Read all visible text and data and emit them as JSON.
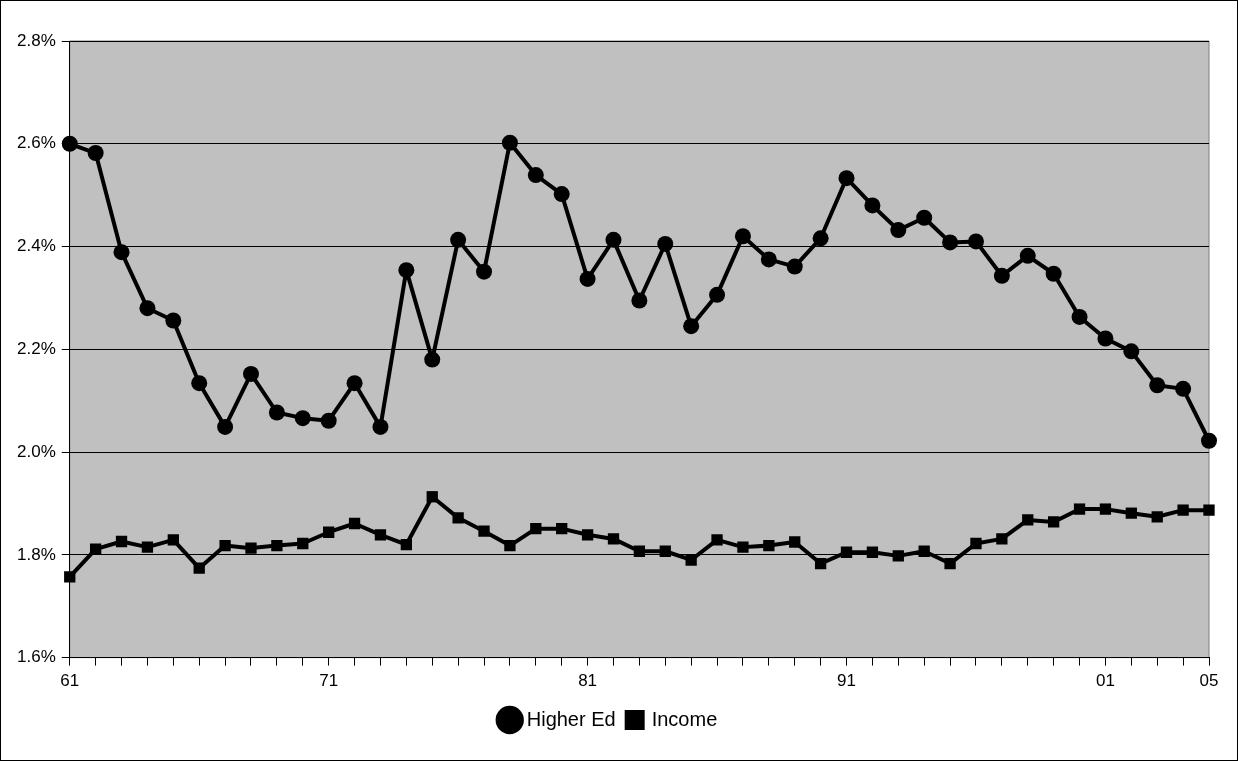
{
  "chart_data": {
    "type": "line",
    "categories": [
      "61",
      null,
      null,
      null,
      null,
      null,
      null,
      null,
      null,
      null,
      "71",
      null,
      null,
      null,
      null,
      null,
      null,
      null,
      null,
      null,
      "81",
      null,
      null,
      null,
      null,
      null,
      null,
      null,
      null,
      null,
      "91",
      null,
      null,
      null,
      null,
      null,
      null,
      null,
      null,
      null,
      "01",
      null,
      null,
      null,
      "05"
    ],
    "series": [
      {
        "name": "Higher Ed",
        "color": "#000000",
        "marker": "circle",
        "values": [
          2.6,
          2.582,
          2.389,
          2.28,
          2.256,
          2.134,
          2.049,
          2.152,
          2.077,
          2.066,
          2.061,
          2.134,
          2.049,
          2.354,
          2.18,
          2.413,
          2.351,
          2.602,
          2.539,
          2.502,
          2.337,
          2.413,
          2.295,
          2.405,
          2.245,
          2.306,
          2.42,
          2.375,
          2.361,
          2.416,
          2.533,
          2.48,
          2.432,
          2.456,
          2.408,
          2.41,
          2.343,
          2.382,
          2.347,
          2.263,
          2.221,
          2.196,
          2.13,
          2.123,
          2.022
        ]
      },
      {
        "name": "Income",
        "color": "#000000",
        "marker": "square",
        "values": [
          1.757,
          1.811,
          1.826,
          1.815,
          1.829,
          1.774,
          1.818,
          1.813,
          1.818,
          1.822,
          1.844,
          1.861,
          1.839,
          1.82,
          1.913,
          1.872,
          1.846,
          1.818,
          1.851,
          1.851,
          1.839,
          1.831,
          1.807,
          1.807,
          1.79,
          1.829,
          1.815,
          1.818,
          1.825,
          1.783,
          1.805,
          1.805,
          1.798,
          1.807,
          1.783,
          1.822,
          1.831,
          1.868,
          1.864,
          1.889,
          1.889,
          1.881,
          1.874,
          1.887,
          1.887
        ]
      }
    ],
    "ylim": [
      1.6,
      2.8
    ],
    "yticks": [
      {
        "value": 1.6,
        "label": "1.6%"
      },
      {
        "value": 1.8,
        "label": "1.8%"
      },
      {
        "value": 2.0,
        "label": "2.0%"
      },
      {
        "value": 2.2,
        "label": "2.2%"
      },
      {
        "value": 2.4,
        "label": "2.4%"
      },
      {
        "value": 2.6,
        "label": "2.6%"
      },
      {
        "value": 2.8,
        "label": "2.8%"
      }
    ],
    "grid": "y",
    "legend": "bottom",
    "line_style": "solid"
  }
}
